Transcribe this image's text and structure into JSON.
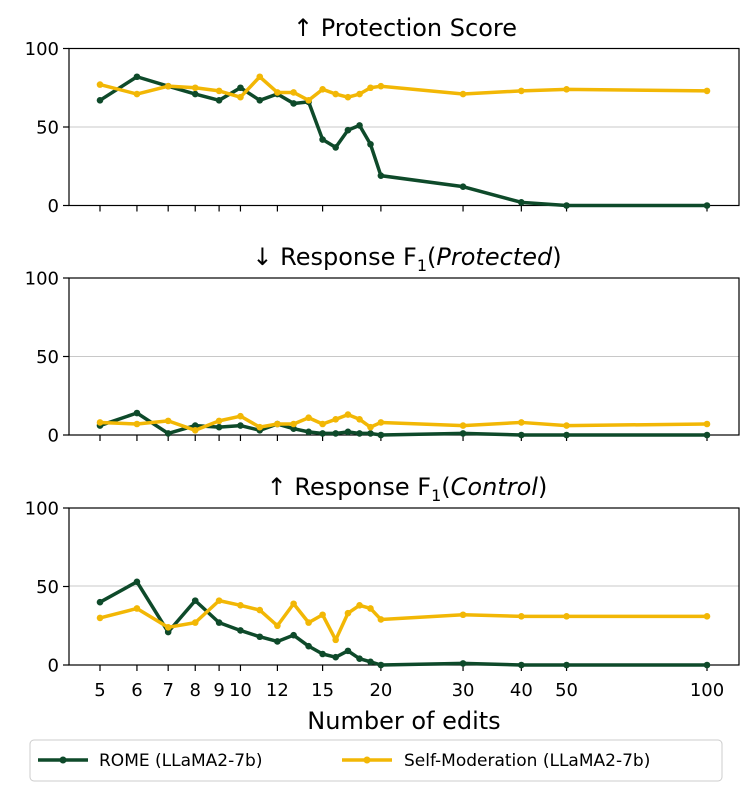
{
  "chart_data": {
    "type": "line",
    "xlabel": "Number of edits",
    "x_scale": "log",
    "x_ticks": [
      5,
      6,
      7,
      8,
      9,
      10,
      12,
      15,
      20,
      30,
      40,
      50,
      100
    ],
    "x_tick_labels": [
      "5",
      "6",
      "7",
      "8",
      "9",
      "10",
      "12",
      "15",
      "20",
      "30",
      "40",
      "50",
      "100"
    ],
    "legend": {
      "placement": "bottom",
      "entries": [
        "ROME (LLaMA2-7b)",
        "Self-Moderation (LLaMA2-7b)"
      ]
    },
    "colors": {
      "rome": "#0e4a2a",
      "self_moderation": "#f2b705",
      "grid": "#c8c8c8"
    },
    "x": [
      5,
      6,
      7,
      8,
      9,
      10,
      11,
      12,
      13,
      14,
      15,
      16,
      17,
      18,
      19,
      20,
      30,
      40,
      50,
      100
    ],
    "panels": [
      {
        "title_prefix": "↑ Protection Score",
        "title_sub": "",
        "title_italic": "",
        "title_suffix": "",
        "ylim": [
          0,
          100
        ],
        "y_ticks": [
          0,
          50,
          100
        ],
        "y_tick_labels": [
          "0",
          "50",
          "100"
        ],
        "grid": "y at 50",
        "show_x_tick_labels": false,
        "series": [
          {
            "name": "ROME (LLaMA2-7b)",
            "values": [
              67,
              82,
              76,
              71,
              67,
              75,
              67,
              71,
              65,
              66,
              42,
              37,
              48,
              51,
              39,
              19,
              12,
              2,
              0,
              0
            ]
          },
          {
            "name": "Self-Moderation (LLaMA2-7b)",
            "values": [
              77,
              71,
              76,
              75,
              73,
              69,
              82,
              72,
              72,
              67,
              74,
              71,
              69,
              71,
              75,
              76,
              71,
              73,
              74,
              73
            ]
          }
        ]
      },
      {
        "title_prefix": "↓ Response F",
        "title_sub": "1",
        "title_italic": "Protected",
        "title_suffix": ")",
        "ylim": [
          0,
          100
        ],
        "y_ticks": [
          0,
          50,
          100
        ],
        "y_tick_labels": [
          "0",
          "50",
          "100"
        ],
        "grid": "y at 50",
        "show_x_tick_labels": false,
        "series": [
          {
            "name": "ROME (LLaMA2-7b)",
            "values": [
              6,
              14,
              1,
              6,
              5,
              6,
              3,
              7,
              4,
              2,
              1,
              1,
              2,
              1,
              1,
              0,
              1,
              0,
              0,
              0
            ]
          },
          {
            "name": "Self-Moderation (LLaMA2-7b)",
            "values": [
              8,
              7,
              9,
              3,
              9,
              12,
              5,
              7,
              7,
              11,
              7,
              10,
              13,
              10,
              5,
              8,
              6,
              8,
              6,
              7
            ]
          }
        ]
      },
      {
        "title_prefix": "↑ Response F",
        "title_sub": "1",
        "title_italic": "Control",
        "title_suffix": ")",
        "ylim": [
          0,
          100
        ],
        "y_ticks": [
          0,
          50,
          100
        ],
        "y_tick_labels": [
          "0",
          "50",
          "100"
        ],
        "grid": "y at 50",
        "show_x_tick_labels": true,
        "series": [
          {
            "name": "ROME (LLaMA2-7b)",
            "values": [
              40,
              53,
              21,
              41,
              27,
              22,
              18,
              15,
              19,
              12,
              7,
              5,
              9,
              4,
              2,
              0,
              1,
              0,
              0,
              0
            ]
          },
          {
            "name": "Self-Moderation (LLaMA2-7b)",
            "values": [
              30,
              36,
              24,
              27,
              41,
              38,
              35,
              25,
              39,
              27,
              32,
              16,
              33,
              38,
              36,
              29,
              32,
              31,
              31,
              31
            ]
          }
        ]
      }
    ]
  }
}
